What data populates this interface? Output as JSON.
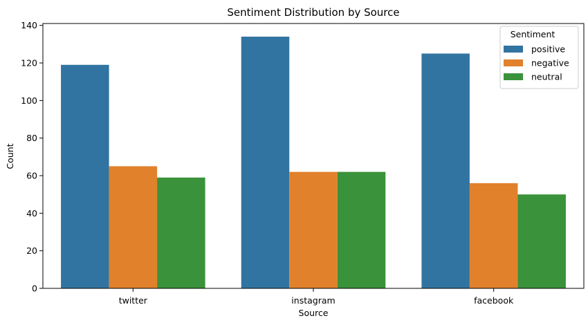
{
  "chart_data": {
    "type": "bar",
    "title": "Sentiment Distribution by Source",
    "xlabel": "Source",
    "ylabel": "Count",
    "categories": [
      "twitter",
      "instagram",
      "facebook"
    ],
    "series": [
      {
        "name": "positive",
        "values": [
          119,
          134,
          125
        ],
        "color": "#3274a1"
      },
      {
        "name": "negative",
        "values": [
          65,
          62,
          56
        ],
        "color": "#e1812c"
      },
      {
        "name": "neutral",
        "values": [
          59,
          62,
          50
        ],
        "color": "#3a923a"
      }
    ],
    "ylim": [
      0,
      141
    ],
    "yticks": [
      0,
      20,
      40,
      60,
      80,
      100,
      120,
      140
    ],
    "grid": false,
    "legend": {
      "title": "Sentiment",
      "placement": "top-right"
    }
  }
}
